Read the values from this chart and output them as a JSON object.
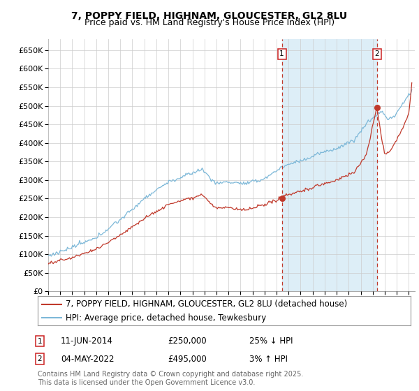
{
  "title": "7, POPPY FIELD, HIGHNAM, GLOUCESTER, GL2 8LU",
  "subtitle": "Price paid vs. HM Land Registry's House Price Index (HPI)",
  "ylim": [
    0,
    680000
  ],
  "yticks": [
    0,
    50000,
    100000,
    150000,
    200000,
    250000,
    300000,
    350000,
    400000,
    450000,
    500000,
    550000,
    600000,
    650000
  ],
  "xlim_start": 1995.0,
  "xlim_end": 2025.5,
  "hpi_color": "#7db8d8",
  "hpi_shade_color": "#ddeef7",
  "price_color": "#c0392b",
  "marker1_x": 2014.44,
  "marker1_price": 250000,
  "marker2_x": 2022.34,
  "marker2_price": 495000,
  "marker1_date_label": "11-JUN-2014",
  "marker1_pct": "25% ↓ HPI",
  "marker2_date_label": "04-MAY-2022",
  "marker2_pct": "3% ↑ HPI",
  "legend_label_price": "7, POPPY FIELD, HIGHNAM, GLOUCESTER, GL2 8LU (detached house)",
  "legend_label_hpi": "HPI: Average price, detached house, Tewkesbury",
  "footer": "Contains HM Land Registry data © Crown copyright and database right 2025.\nThis data is licensed under the Open Government Licence v3.0.",
  "bg_color": "#ffffff",
  "grid_color": "#cccccc",
  "title_fontsize": 10,
  "subtitle_fontsize": 9,
  "tick_fontsize": 8,
  "legend_fontsize": 8.5,
  "footer_fontsize": 7
}
